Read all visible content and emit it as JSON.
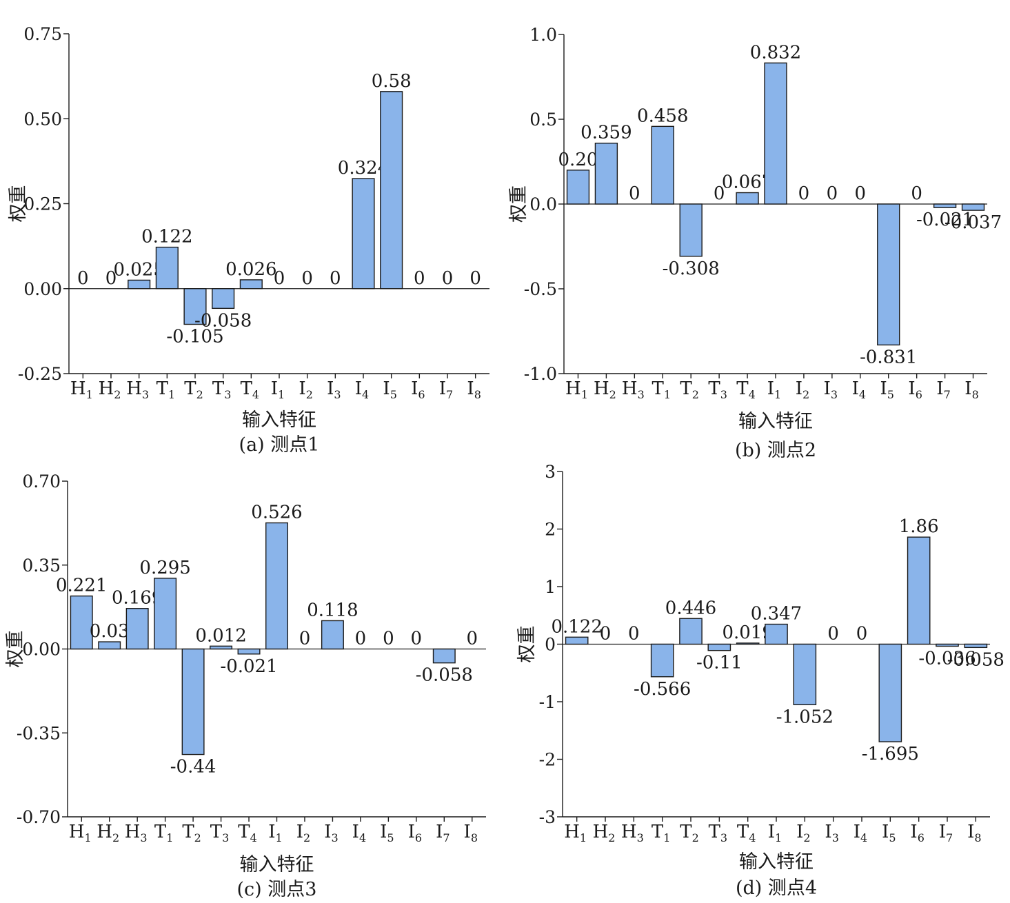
{
  "chart_data": [
    {
      "type": "bar",
      "caption": "(a) 测点1",
      "xlabel": "输入特征",
      "ylabel": "权重",
      "categories": [
        {
          "base": "H",
          "sub": "1"
        },
        {
          "base": "H",
          "sub": "2"
        },
        {
          "base": "H",
          "sub": "3"
        },
        {
          "base": "T",
          "sub": "1"
        },
        {
          "base": "T",
          "sub": "2"
        },
        {
          "base": "T",
          "sub": "3"
        },
        {
          "base": "T",
          "sub": "4"
        },
        {
          "base": "I",
          "sub": "1"
        },
        {
          "base": "I",
          "sub": "2"
        },
        {
          "base": "I",
          "sub": "3"
        },
        {
          "base": "I",
          "sub": "4"
        },
        {
          "base": "I",
          "sub": "5"
        },
        {
          "base": "I",
          "sub": "6"
        },
        {
          "base": "I",
          "sub": "7"
        },
        {
          "base": "I",
          "sub": "8"
        }
      ],
      "values": [
        0,
        0,
        0.025,
        0.122,
        -0.105,
        -0.058,
        0.026,
        0,
        0,
        0,
        0.324,
        0.58,
        0,
        0,
        0
      ],
      "labels": [
        "0",
        "0",
        "0.025",
        "0.122",
        "-0.105",
        "-0.058",
        "0.026",
        "0",
        "0",
        "0",
        "0.324",
        "0.58",
        "0",
        "0",
        "0"
      ],
      "ylim": [
        -0.25,
        0.75
      ],
      "yticks": [
        -0.25,
        0.0,
        0.25,
        0.5,
        0.75
      ],
      "ytick_labels": [
        "-0.25",
        "0.00",
        "0.25",
        "0.50",
        "0.75"
      ]
    },
    {
      "type": "bar",
      "caption": "(b) 测点2",
      "xlabel": "输入特征",
      "ylabel": "权重",
      "categories": [
        {
          "base": "H",
          "sub": "1"
        },
        {
          "base": "H",
          "sub": "2"
        },
        {
          "base": "H",
          "sub": "3"
        },
        {
          "base": "T",
          "sub": "1"
        },
        {
          "base": "T",
          "sub": "2"
        },
        {
          "base": "T",
          "sub": "3"
        },
        {
          "base": "T",
          "sub": "4"
        },
        {
          "base": "I",
          "sub": "1"
        },
        {
          "base": "I",
          "sub": "2"
        },
        {
          "base": "I",
          "sub": "3"
        },
        {
          "base": "I",
          "sub": "4"
        },
        {
          "base": "I",
          "sub": "5"
        },
        {
          "base": "I",
          "sub": "6"
        },
        {
          "base": "I",
          "sub": "7"
        },
        {
          "base": "I",
          "sub": "8"
        }
      ],
      "values": [
        0.2,
        0.359,
        0,
        0.458,
        -0.308,
        0,
        0.067,
        0.832,
        0,
        0,
        0,
        -0.831,
        0,
        -0.021,
        -0.037
      ],
      "labels": [
        "0.20",
        "0.359",
        "0",
        "0.458",
        "-0.308",
        "0",
        "0.067",
        "0.832",
        "0",
        "0",
        "0",
        "-0.831",
        "0",
        "-0.021",
        "-0.037"
      ],
      "ylim": [
        -1.0,
        1.0
      ],
      "yticks": [
        -1.0,
        -0.5,
        0.0,
        0.5,
        1.0
      ],
      "ytick_labels": [
        "-1.0",
        "-0.5",
        "0.0",
        "0.5",
        "1.0"
      ]
    },
    {
      "type": "bar",
      "caption": "(c) 测点3",
      "xlabel": "输入特征",
      "ylabel": "权重",
      "categories": [
        {
          "base": "H",
          "sub": "1"
        },
        {
          "base": "H",
          "sub": "2"
        },
        {
          "base": "H",
          "sub": "3"
        },
        {
          "base": "T",
          "sub": "1"
        },
        {
          "base": "T",
          "sub": "2"
        },
        {
          "base": "T",
          "sub": "3"
        },
        {
          "base": "T",
          "sub": "4"
        },
        {
          "base": "I",
          "sub": "1"
        },
        {
          "base": "I",
          "sub": "2"
        },
        {
          "base": "I",
          "sub": "3"
        },
        {
          "base": "I",
          "sub": "4"
        },
        {
          "base": "I",
          "sub": "5"
        },
        {
          "base": "I",
          "sub": "6"
        },
        {
          "base": "I",
          "sub": "7"
        },
        {
          "base": "I",
          "sub": "8"
        }
      ],
      "values": [
        0.221,
        0.03,
        0.169,
        0.295,
        -0.44,
        0.012,
        -0.021,
        0.526,
        0,
        0.118,
        0,
        0,
        0,
        -0.058,
        0
      ],
      "labels": [
        "0.221",
        "0.03",
        "0.169",
        "0.295",
        "-0.44",
        "0.012",
        "-0.021",
        "0.526",
        "0",
        "0.118",
        "0",
        "0",
        "0",
        "-0.058",
        "0"
      ],
      "ylim": [
        -0.7,
        0.7
      ],
      "yticks": [
        -0.7,
        -0.35,
        0.0,
        0.35,
        0.7
      ],
      "ytick_labels": [
        "-0.70",
        "-0.35",
        "0.00",
        "0.35",
        "0.70"
      ]
    },
    {
      "type": "bar",
      "caption": "(d) 测点4",
      "xlabel": "输入特征",
      "ylabel": "权重",
      "categories": [
        {
          "base": "H",
          "sub": "1"
        },
        {
          "base": "H",
          "sub": "2"
        },
        {
          "base": "H",
          "sub": "3"
        },
        {
          "base": "T",
          "sub": "1"
        },
        {
          "base": "T",
          "sub": "2"
        },
        {
          "base": "T",
          "sub": "3"
        },
        {
          "base": "T",
          "sub": "4"
        },
        {
          "base": "I",
          "sub": "1"
        },
        {
          "base": "I",
          "sub": "2"
        },
        {
          "base": "I",
          "sub": "3"
        },
        {
          "base": "I",
          "sub": "4"
        },
        {
          "base": "I",
          "sub": "5"
        },
        {
          "base": "I",
          "sub": "6"
        },
        {
          "base": "I",
          "sub": "7"
        },
        {
          "base": "I",
          "sub": "8"
        }
      ],
      "values": [
        0.122,
        0,
        0,
        -0.566,
        0.446,
        -0.11,
        0.019,
        0.347,
        -1.052,
        0,
        0,
        -1.695,
        1.86,
        -0.036,
        -0.058
      ],
      "labels": [
        "0.122",
        "0",
        "0",
        "-0.566",
        "0.446",
        "-0.11",
        "0.019",
        "0.347",
        "-1.052",
        "0",
        "0",
        "-1.695",
        "1.86",
        "-0.036",
        "-0.058"
      ],
      "ylim": [
        -3,
        3
      ],
      "yticks": [
        -3,
        -2,
        -1,
        0,
        1,
        2,
        3
      ],
      "ytick_labels": [
        "-3",
        "-2",
        "-1",
        "0",
        "1",
        "2",
        "3"
      ]
    }
  ],
  "colors": {
    "bar_fill": "#8ab4ea",
    "stroke": "#1a1a1a"
  }
}
